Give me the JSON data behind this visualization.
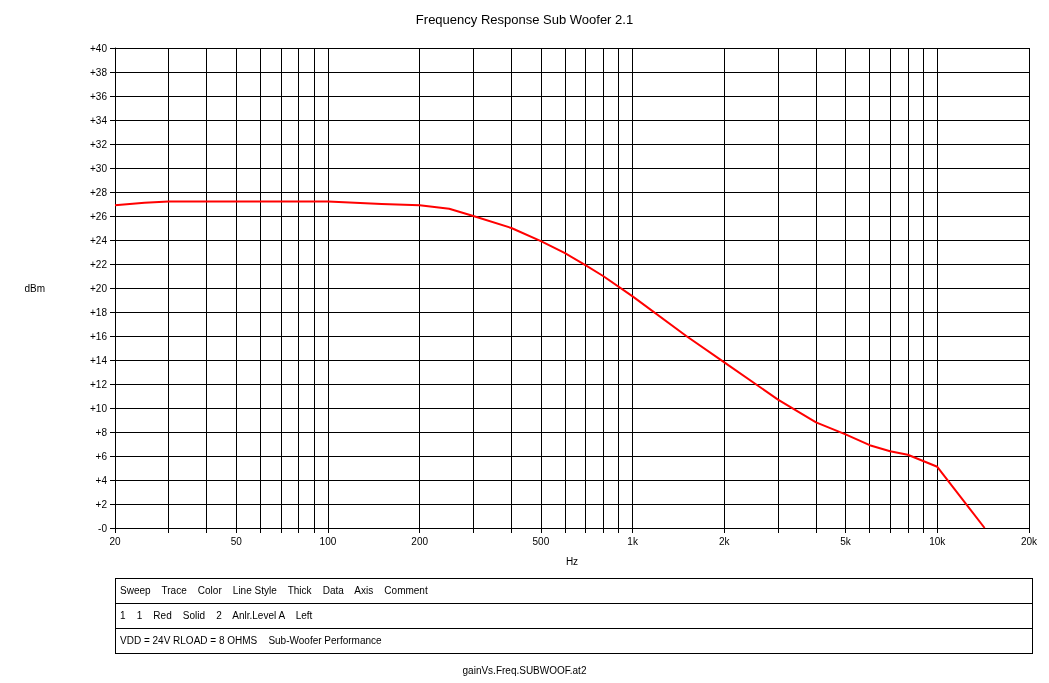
{
  "chart_data": {
    "type": "line",
    "title": "Frequency Response Sub Woofer 2.1",
    "xlabel": "Hz",
    "ylabel": "dBm",
    "log": "x",
    "grid": true,
    "marker": "none",
    "line_style": "solid",
    "xlim": [
      20,
      20000
    ],
    "ylim": [
      0,
      40
    ],
    "xticks": [
      20,
      {
        "value": 30,
        "label": null
      },
      {
        "value": 40,
        "label": null
      },
      50,
      {
        "value": 60,
        "label": null
      },
      {
        "value": 70,
        "label": null
      },
      {
        "value": 80,
        "label": null
      },
      {
        "value": 90,
        "label": null
      },
      100,
      200,
      {
        "value": 300,
        "label": null
      },
      {
        "value": 400,
        "label": null
      },
      500,
      {
        "value": 600,
        "label": null
      },
      {
        "value": 700,
        "label": null
      },
      {
        "value": 800,
        "label": null
      },
      {
        "value": 900,
        "label": null
      },
      {
        "value": 1000,
        "label": "1k"
      },
      {
        "value": 2000,
        "label": "2k"
      },
      {
        "value": 3000,
        "label": null
      },
      {
        "value": 4000,
        "label": null
      },
      {
        "value": 5000,
        "label": "5k"
      },
      {
        "value": 6000,
        "label": null
      },
      {
        "value": 7000,
        "label": null
      },
      {
        "value": 8000,
        "label": null
      },
      {
        "value": 9000,
        "label": null
      },
      {
        "value": 10000,
        "label": "10k"
      },
      {
        "value": 20000,
        "label": "20k"
      }
    ],
    "yticks": [
      {
        "value": 0,
        "label": "-0"
      },
      {
        "value": 2,
        "label": "+2"
      },
      {
        "value": 4,
        "label": "+4"
      },
      {
        "value": 6,
        "label": "+6"
      },
      {
        "value": 8,
        "label": "+8"
      },
      {
        "value": 10,
        "label": "+10"
      },
      {
        "value": 12,
        "label": "+12"
      },
      {
        "value": 14,
        "label": "+14"
      },
      {
        "value": 16,
        "label": "+16"
      },
      {
        "value": 18,
        "label": "+18"
      },
      {
        "value": 20,
        "label": "+20"
      },
      {
        "value": 22,
        "label": "+22"
      },
      {
        "value": 24,
        "label": "+24"
      },
      {
        "value": 26,
        "label": "+26"
      },
      {
        "value": 28,
        "label": "+28"
      },
      {
        "value": 30,
        "label": "+30"
      },
      {
        "value": 32,
        "label": "+32"
      },
      {
        "value": 34,
        "label": "+34"
      },
      {
        "value": 36,
        "label": "+36"
      },
      {
        "value": 38,
        "label": "+38"
      },
      {
        "value": 40,
        "label": "+40"
      }
    ],
    "series": [
      {
        "color": "#ff0000",
        "x": [
          20,
          25,
          30,
          50,
          100,
          150,
          200,
          250,
          300,
          400,
          500,
          600,
          700,
          800,
          1000,
          1500,
          2000,
          3000,
          4000,
          5000,
          6000,
          7000,
          8000,
          10000,
          14300
        ],
        "values": [
          26.9,
          27.1,
          27.2,
          27.2,
          27.2,
          27.0,
          26.9,
          26.6,
          26.0,
          25.0,
          23.9,
          22.9,
          21.9,
          21.0,
          19.3,
          16.0,
          13.8,
          10.7,
          8.8,
          7.8,
          6.9,
          6.4,
          6.1,
          5.1,
          0
        ]
      }
    ],
    "annotations": [
      "Sweep    Trace    Color    Line Style    Thick    Data    Axis    Comment",
      "1    1    Red    Solid    2    Anlr.Level A    Left",
      "VDD = 24V RLOAD = 8 OHMS    Sub-Woofer Performance",
      "gainVs.Freq.SUBWOOF.at2"
    ]
  }
}
